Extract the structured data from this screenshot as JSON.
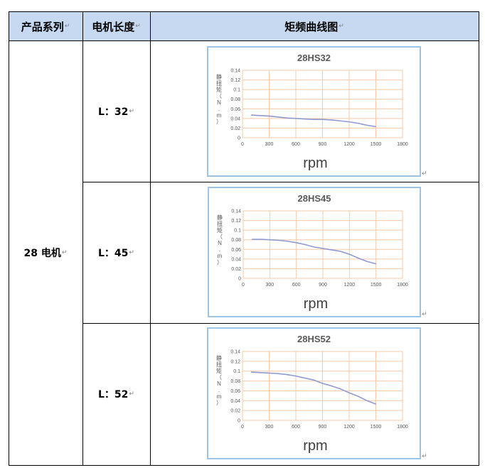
{
  "table": {
    "headers": [
      "产品系列",
      "电机长度",
      "矩频曲线图"
    ],
    "series_label": "28 电机",
    "rows": [
      {
        "length_label": "L：32"
      },
      {
        "length_label": "L：45"
      },
      {
        "length_label": "L：52"
      }
    ],
    "para_mark": "↵",
    "header_bg": "#c6d9f1"
  },
  "chart_data": [
    {
      "type": "line",
      "title": "28HS32",
      "xlabel": "rpm",
      "ylabel": "静扭矩（N.m）",
      "x": [
        100,
        200,
        300,
        400,
        500,
        600,
        700,
        800,
        900,
        1000,
        1100,
        1200,
        1300,
        1400,
        1500
      ],
      "y": [
        0.047,
        0.046,
        0.045,
        0.043,
        0.041,
        0.04,
        0.039,
        0.038,
        0.038,
        0.037,
        0.035,
        0.033,
        0.03,
        0.026,
        0.023
      ],
      "xlim": [
        0,
        1800
      ],
      "ylim": [
        0,
        0.14
      ],
      "xticks": [
        "0",
        "300",
        "600",
        "900",
        "1200",
        "1500",
        "1800"
      ],
      "yticks": [
        "0",
        "0.02",
        "0.04",
        "0.06",
        "0.08",
        "0.1",
        "0.12",
        "0.14"
      ],
      "line_color": "#8e9bd3",
      "grid_color": "#f6c9a8"
    },
    {
      "type": "line",
      "title": "28HS45",
      "xlabel": "rpm",
      "ylabel": "静扭矩（N.m）",
      "x": [
        100,
        200,
        300,
        400,
        500,
        600,
        700,
        800,
        900,
        1000,
        1100,
        1200,
        1300,
        1400,
        1500
      ],
      "y": [
        0.081,
        0.081,
        0.08,
        0.079,
        0.077,
        0.074,
        0.07,
        0.065,
        0.062,
        0.059,
        0.056,
        0.05,
        0.042,
        0.035,
        0.03
      ],
      "xlim": [
        0,
        1800
      ],
      "ylim": [
        0,
        0.14
      ],
      "xticks": [
        "0",
        "300",
        "600",
        "900",
        "1200",
        "1500",
        "1800"
      ],
      "yticks": [
        "0",
        "0.02",
        "0.04",
        "0.06",
        "0.08",
        "0.1",
        "0.12",
        "0.14"
      ],
      "line_color": "#8e9bd3",
      "grid_color": "#f6c9a8"
    },
    {
      "type": "line",
      "title": "28HS52",
      "xlabel": "rpm",
      "ylabel": "静扭矩（N.m）",
      "x": [
        100,
        200,
        300,
        400,
        500,
        600,
        700,
        800,
        900,
        1000,
        1100,
        1200,
        1300,
        1400,
        1500
      ],
      "y": [
        0.098,
        0.097,
        0.096,
        0.095,
        0.093,
        0.09,
        0.086,
        0.082,
        0.075,
        0.07,
        0.064,
        0.056,
        0.049,
        0.04,
        0.033
      ],
      "xlim": [
        0,
        1800
      ],
      "ylim": [
        0,
        0.14
      ],
      "xticks": [
        "0",
        "300",
        "600",
        "900",
        "1200",
        "1500",
        "1800"
      ],
      "yticks": [
        "0",
        "0.02",
        "0.04",
        "0.06",
        "0.08",
        "0.1",
        "0.12",
        "0.14"
      ],
      "line_color": "#8e9bd3",
      "grid_color": "#f6c9a8"
    }
  ]
}
